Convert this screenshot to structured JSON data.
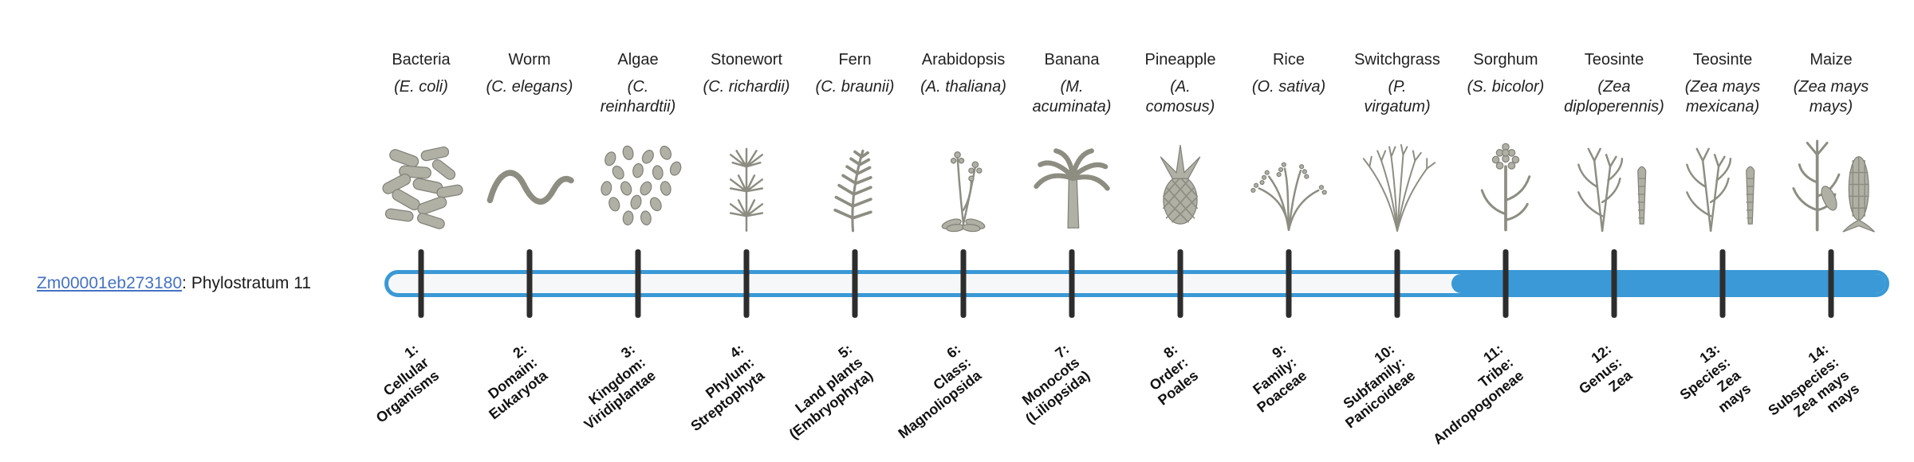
{
  "gene": {
    "id": "Zm00001eb273180",
    "suffix": ": Phylostratum 11",
    "link_color": "#4472c4"
  },
  "bar": {
    "outline_color": "#3a99d6",
    "fill_color": "#3a99d6",
    "track_color": "#f5f7f9",
    "tick_color": "#2d2d2d",
    "filled_from_stratum": 11,
    "total_strata": 14
  },
  "taxa": [
    {
      "common": "Bacteria",
      "scientific": "(E. coli)",
      "icon": "bacteria-icon",
      "stratum": "1:\nCellular\nOrganisms"
    },
    {
      "common": "Worm",
      "scientific": "(C. elegans)",
      "icon": "worm-icon",
      "stratum": "2:\nDomain:\nEukaryota"
    },
    {
      "common": "Algae",
      "scientific": "(C.\nreinhardtii)",
      "icon": "algae-icon",
      "stratum": "3:\nKingdom:\nViridiplantae"
    },
    {
      "common": "Stonewort",
      "scientific": "(C. richardii)",
      "icon": "stonewort-icon",
      "stratum": "4:\nPhylum:\nStreptophyta"
    },
    {
      "common": "Fern",
      "scientific": "(C. braunii)",
      "icon": "fern-icon",
      "stratum": "5:\nLand plants\n(Embryophyta)"
    },
    {
      "common": "Arabidopsis",
      "scientific": "(A. thaliana)",
      "icon": "arabidopsis-icon",
      "stratum": "6:\nClass:\nMagnoliopsida"
    },
    {
      "common": "Banana",
      "scientific": "(M.\nacuminata)",
      "icon": "banana-icon",
      "stratum": "7:\nMonocots\n(Liliopsida)"
    },
    {
      "common": "Pineapple",
      "scientific": "(A.\ncomosus)",
      "icon": "pineapple-icon",
      "stratum": "8:\nOrder:\nPoales"
    },
    {
      "common": "Rice",
      "scientific": "(O. sativa)",
      "icon": "rice-icon",
      "stratum": "9:\nFamily:\nPoaceae"
    },
    {
      "common": "Switchgrass",
      "scientific": "(P.\nvirgatum)",
      "icon": "switchgrass-icon",
      "stratum": "10:\nSubfamily:\nPanicoideae"
    },
    {
      "common": "Sorghum",
      "scientific": "(S. bicolor)",
      "icon": "sorghum-icon",
      "stratum": "11:\nTribe:\nAndropogoneae"
    },
    {
      "common": "Teosinte",
      "scientific": "(Zea\ndiploperennis)",
      "icon": "teosinte-icon",
      "stratum": "12:\nGenus:\nZea"
    },
    {
      "common": "Teosinte",
      "scientific": "(Zea mays\nmexicana)",
      "icon": "teosinte-icon",
      "stratum": "13:\nSpecies:\nZea\nmays"
    },
    {
      "common": "Maize",
      "scientific": "(Zea mays\nmays)",
      "icon": "maize-icon",
      "stratum": "14:\nSubspecies:\nZea mays\nmays"
    }
  ]
}
